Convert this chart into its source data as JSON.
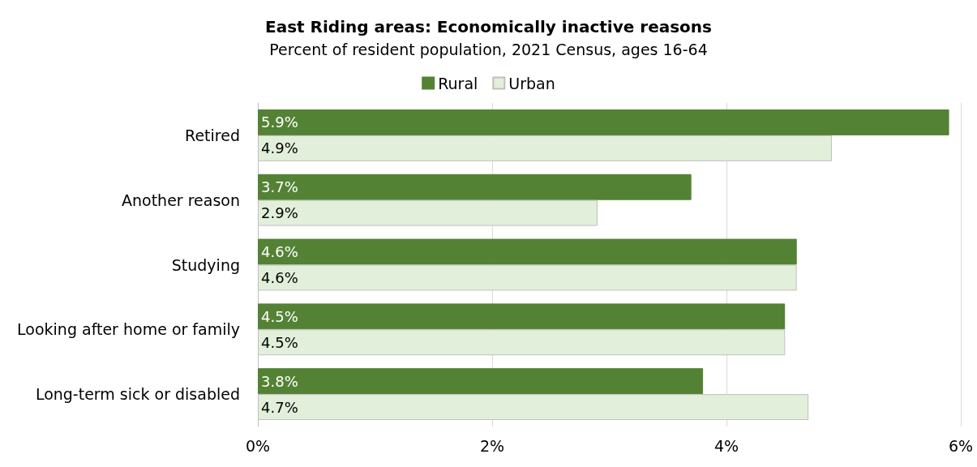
{
  "chart_data": {
    "type": "bar",
    "orientation": "horizontal",
    "title": "East Riding areas: Economically inactive reasons",
    "subtitle": "Percent of resident population, 2021 Census, ages 16-64",
    "categories": [
      "Retired",
      "Another reason",
      "Studying",
      "Looking after home or family",
      "Long-term sick or disabled"
    ],
    "series": [
      {
        "name": "Rural",
        "color": "#548235",
        "values": [
          5.9,
          3.7,
          4.6,
          4.5,
          3.8
        ],
        "value_labels": [
          "5.9%",
          "3.7%",
          "4.6%",
          "4.5%",
          "3.8%"
        ]
      },
      {
        "name": "Urban",
        "color": "#e2efda",
        "values": [
          4.9,
          2.9,
          4.6,
          4.5,
          4.7
        ],
        "value_labels": [
          "4.9%",
          "2.9%",
          "4.6%",
          "4.5%",
          "4.7%"
        ]
      }
    ],
    "xlim": [
      0,
      6
    ],
    "xticks": [
      {
        "value": 0,
        "label": "0%"
      },
      {
        "value": 2,
        "label": "2%"
      },
      {
        "value": 4,
        "label": "4%"
      },
      {
        "value": 6,
        "label": "6%"
      }
    ],
    "grid": "x",
    "legend": "top"
  }
}
